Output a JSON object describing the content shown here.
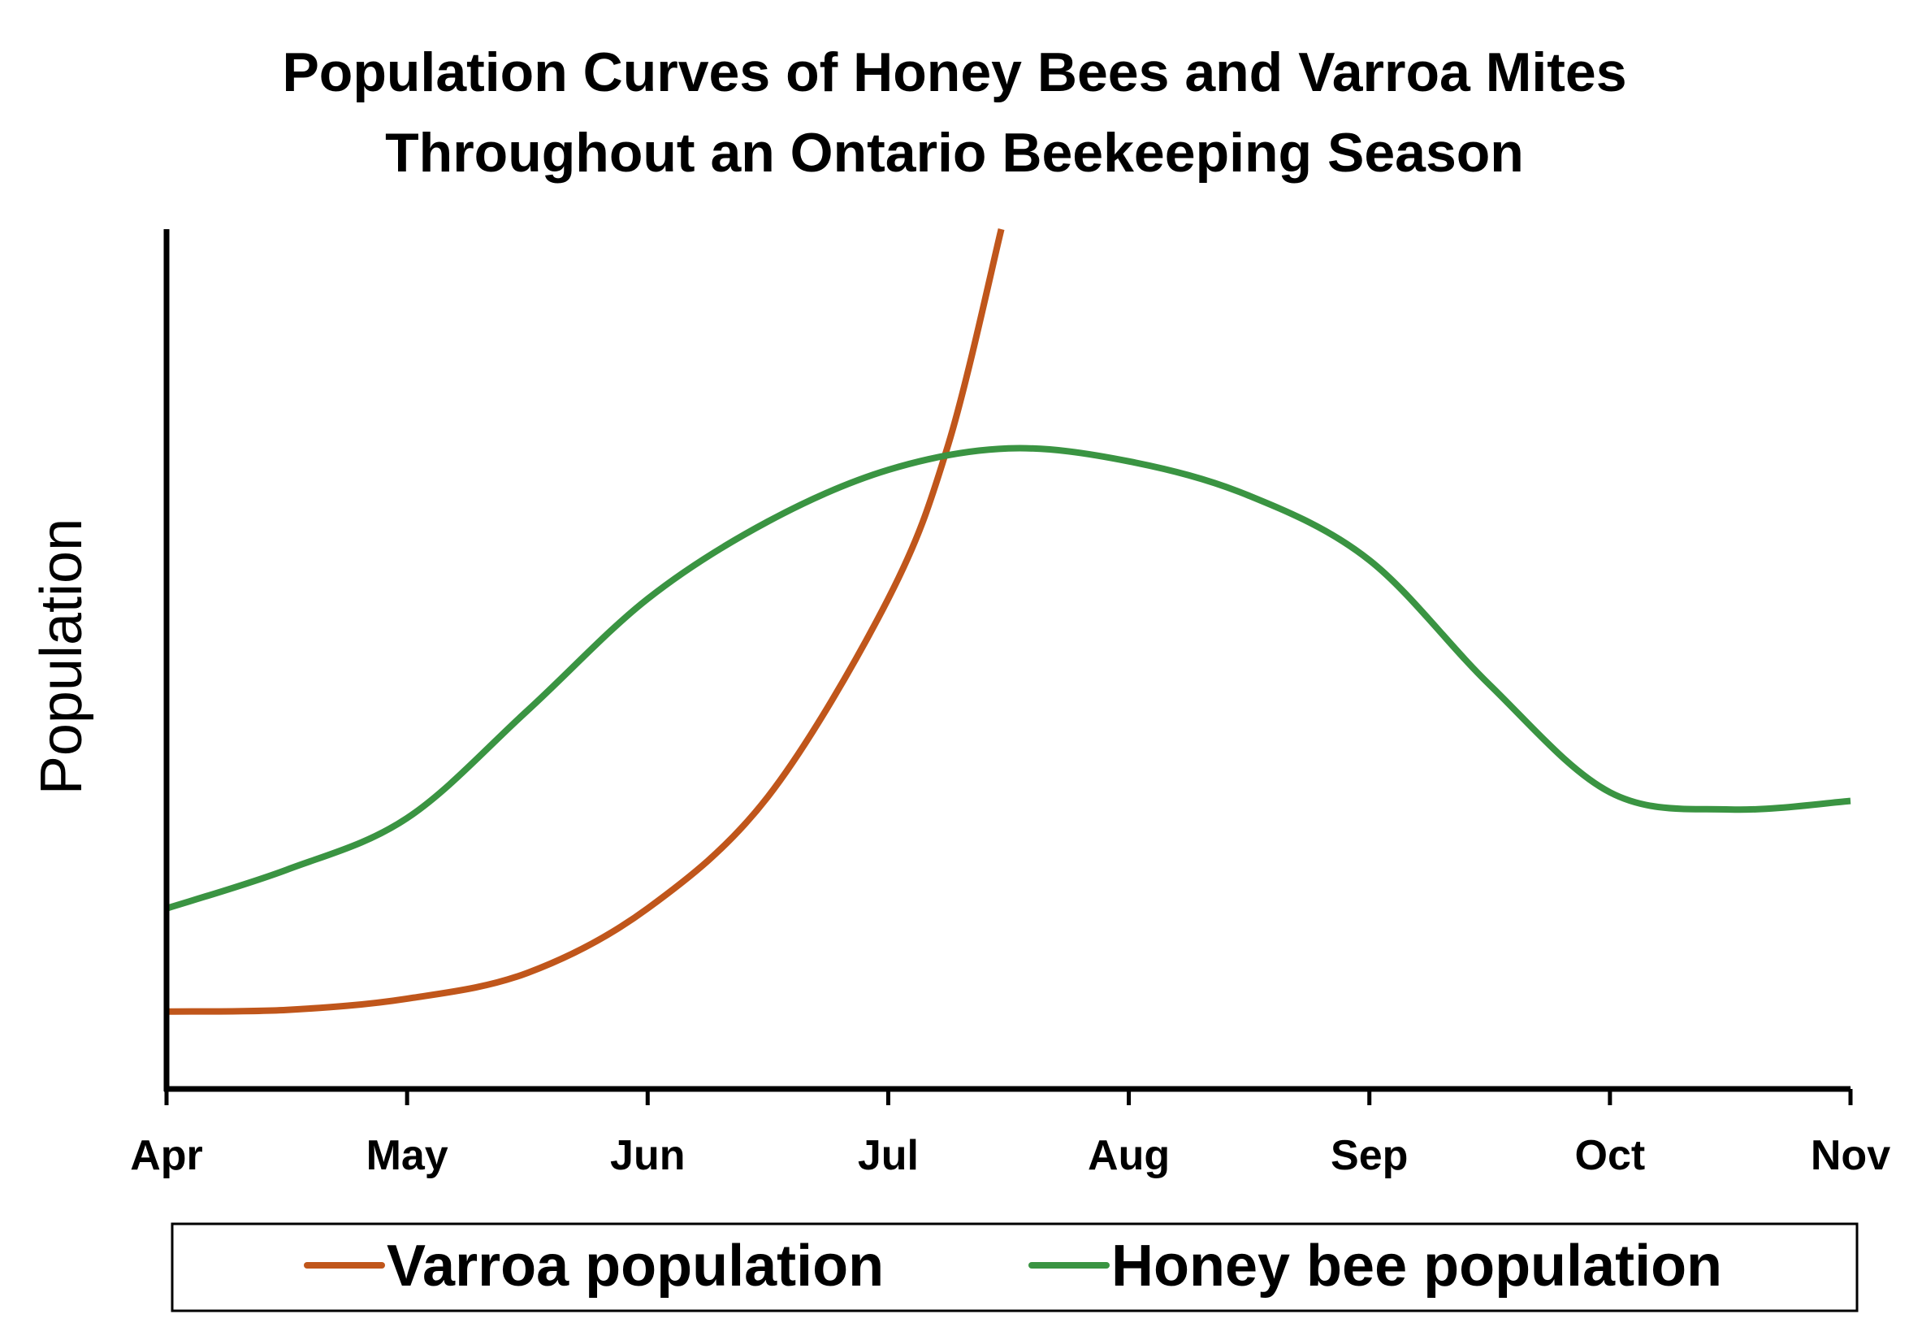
{
  "chart_data": {
    "type": "line",
    "title_lines": [
      "Population Curves of Honey Bees and Varroa Mites",
      "Throughout an Ontario Beekeeping Season"
    ],
    "xlabel": "",
    "ylabel": "Population",
    "categories": [
      "Apr",
      "May",
      "Jun",
      "Jul",
      "Aug",
      "Sep",
      "Oct",
      "Nov"
    ],
    "ylim": [
      0,
      100
    ],
    "grid": false,
    "y_tick_labels": false,
    "legend_position": "bottom",
    "series": [
      {
        "name": "Varroa population",
        "color": "#c0561b",
        "points": [
          [
            0,
            9
          ],
          [
            0.5,
            9.2
          ],
          [
            1,
            10.5
          ],
          [
            1.5,
            13.5
          ],
          [
            2,
            21
          ],
          [
            2.5,
            34
          ],
          [
            3,
            57
          ],
          [
            3.25,
            75
          ],
          [
            3.47,
            100
          ]
        ]
      },
      {
        "name": "Honey bee population",
        "color": "#3a9442",
        "points": [
          [
            0,
            21
          ],
          [
            0.5,
            25.5
          ],
          [
            1,
            31.5
          ],
          [
            1.5,
            44
          ],
          [
            2,
            57
          ],
          [
            2.5,
            66
          ],
          [
            3,
            72
          ],
          [
            3.5,
            74.5
          ],
          [
            4,
            73
          ],
          [
            4.5,
            69
          ],
          [
            5,
            61.5
          ],
          [
            5.5,
            47
          ],
          [
            6,
            34.5
          ],
          [
            6.5,
            32.5
          ],
          [
            7,
            33.5
          ]
        ]
      }
    ]
  }
}
